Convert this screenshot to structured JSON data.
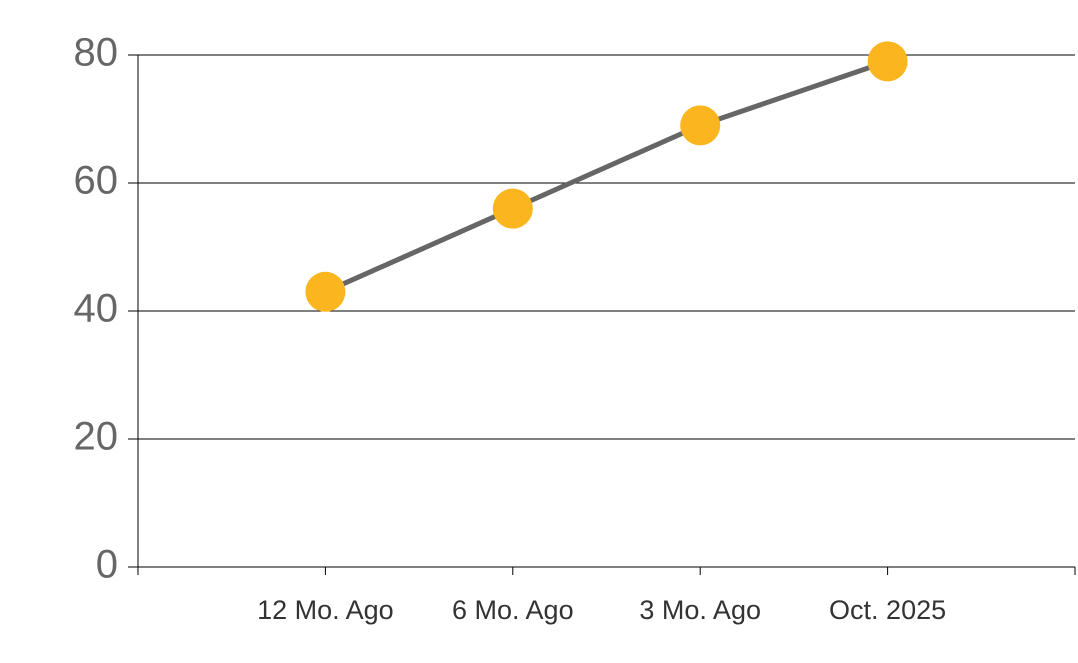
{
  "chart_data": {
    "type": "line",
    "categories": [
      "12 Mo. Ago",
      "6 Mo. Ago",
      "3 Mo. Ago",
      "Oct. 2025"
    ],
    "series": [
      {
        "values": [
          43,
          56,
          69,
          79
        ],
        "color": "#666666",
        "marker_color": "#fbb61f"
      }
    ],
    "ylim": [
      0,
      80
    ],
    "yticks": [
      0,
      20,
      40,
      60,
      80
    ],
    "grid": true
  }
}
